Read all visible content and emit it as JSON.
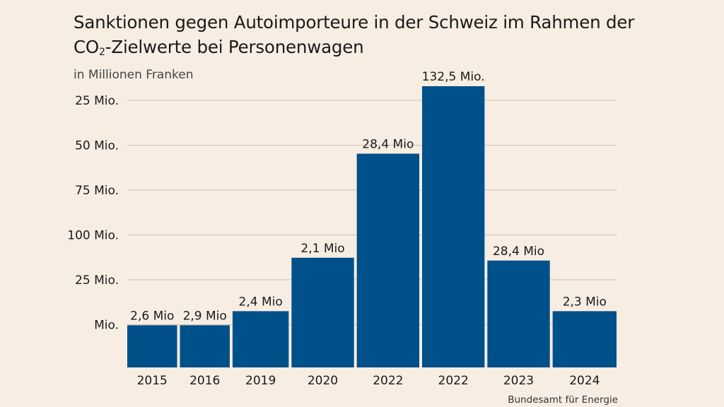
{
  "title_pre": "Sanktionen gegen Autoimporteure in der Schweiz im Rahmen der CO",
  "title_sub": "2",
  "title_post": "-Zielwerte bei Personenwagen",
  "unit_label": "in Millionen Franken",
  "source": "Bundesamt für Energie",
  "colors": {
    "bar": "#00508a",
    "grid": "#c9c4bd",
    "background": "#f7ede2"
  },
  "chart_data": {
    "type": "bar",
    "categories": [
      "2015",
      "2016",
      "2019",
      "2020",
      "2022",
      "2022",
      "2023",
      "2024"
    ],
    "values": [
      2.6,
      2.9,
      2.4,
      2.1,
      28.4,
      132.5,
      28.4,
      2.3
    ],
    "data_labels": [
      "2,6 Mio",
      "2,9 Mio",
      "2,4 Mio",
      "2,1 Mio",
      "28,4 Mio",
      "132,5 Mio.",
      "28,4 Mio",
      "2,3 Mio"
    ],
    "bar_levels": [
      0.15,
      0.15,
      0.2,
      0.39,
      0.76,
      1.0,
      0.38,
      0.2
    ],
    "ytick_labels": [
      "25 Mio.",
      "50 Mio.",
      "75 Mio.",
      "100 Mio.",
      "25 Mio.",
      "Mio."
    ],
    "grid": true
  }
}
